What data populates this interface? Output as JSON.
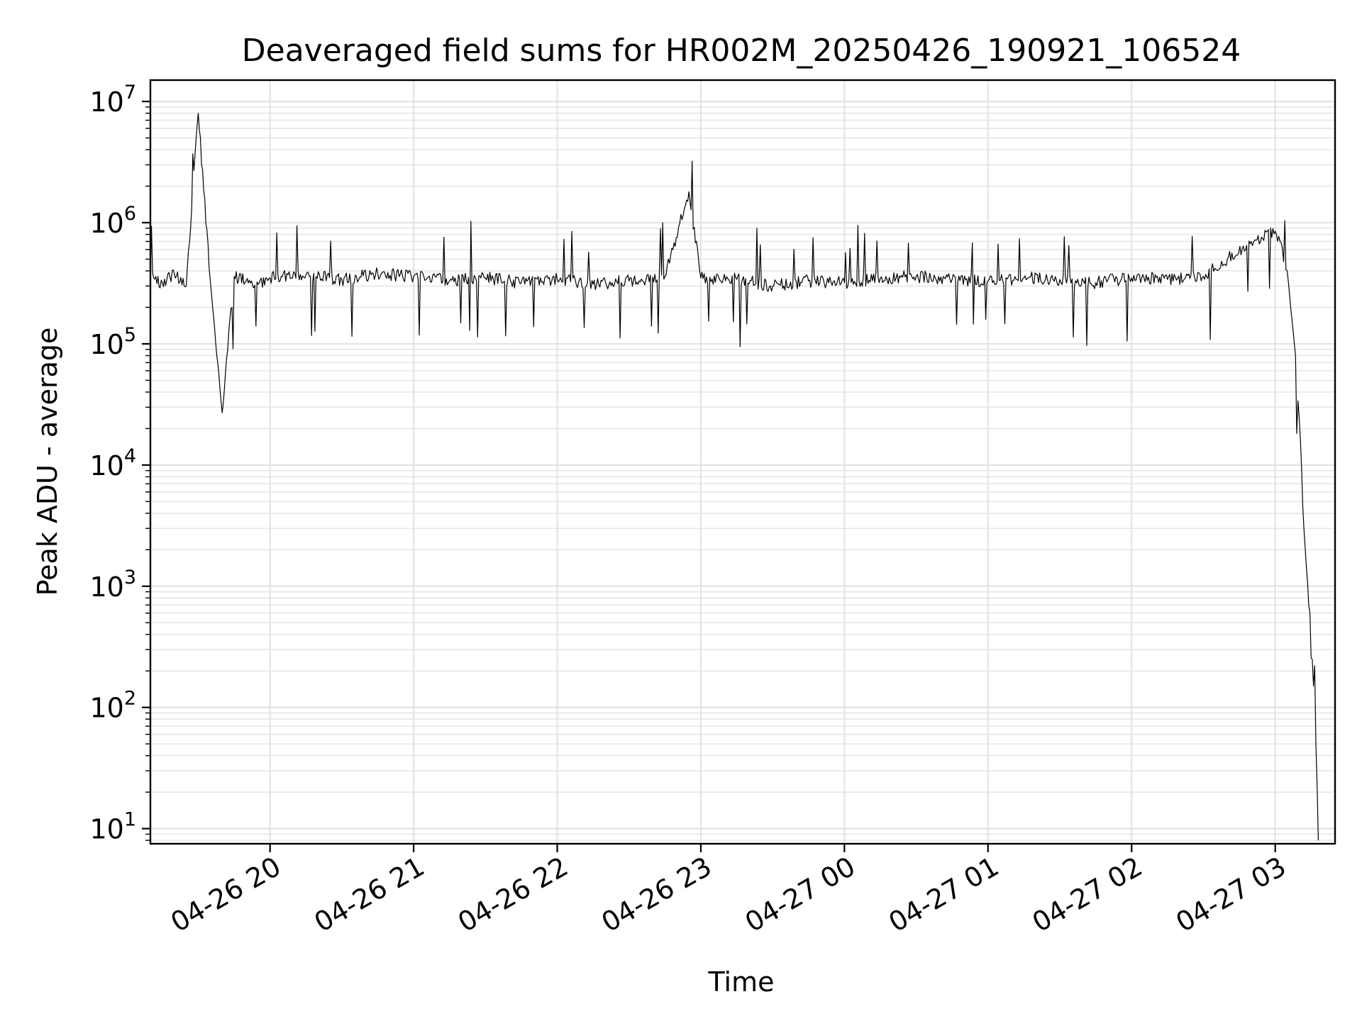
{
  "chart_data": {
    "type": "line",
    "title": "Deaveraged field sums for HR002M_20250426_190921_106524",
    "xlabel": "Time",
    "ylabel": "Peak ADU - average",
    "yscale": "log",
    "grid": true,
    "legend": "none",
    "xlim": [
      "2025-04-26 19:10",
      "2025-04-27 03:25"
    ],
    "ylim": [
      7.5,
      15000000
    ],
    "x_ticks": [
      {
        "t": "2025-04-26 20:00",
        "label": "04-26 20"
      },
      {
        "t": "2025-04-26 21:00",
        "label": "04-26 21"
      },
      {
        "t": "2025-04-26 22:00",
        "label": "04-26 22"
      },
      {
        "t": "2025-04-26 23:00",
        "label": "04-26 23"
      },
      {
        "t": "2025-04-27 00:00",
        "label": "04-27 00"
      },
      {
        "t": "2025-04-27 01:00",
        "label": "04-27 01"
      },
      {
        "t": "2025-04-27 02:00",
        "label": "04-27 02"
      },
      {
        "t": "2025-04-27 03:00",
        "label": "04-27 03"
      }
    ],
    "y_ticks": [
      {
        "v": 10,
        "base": "10",
        "exp": "1"
      },
      {
        "v": 100,
        "base": "10",
        "exp": "2"
      },
      {
        "v": 1000,
        "base": "10",
        "exp": "3"
      },
      {
        "v": 10000,
        "base": "10",
        "exp": "4"
      },
      {
        "v": 100000,
        "base": "10",
        "exp": "5"
      },
      {
        "v": 1000000,
        "base": "10",
        "exp": "6"
      },
      {
        "v": 10000000,
        "base": "10",
        "exp": "7"
      }
    ],
    "series_color": "#000000",
    "series": [
      {
        "x": [
          "2025-04-26 19:10",
          "2025-04-26 19:15",
          "2025-04-26 19:20",
          "2025-04-26 19:25",
          "2025-04-26 19:30",
          "2025-04-26 19:35",
          "2025-04-26 19:40",
          "2025-04-26 19:45",
          "2025-04-26 19:50",
          "2025-04-26 19:55",
          "2025-04-26 20:00",
          "2025-04-26 20:15",
          "2025-04-26 20:30",
          "2025-04-26 20:45",
          "2025-04-26 21:00",
          "2025-04-26 21:15",
          "2025-04-26 21:30",
          "2025-04-26 21:45",
          "2025-04-26 22:00",
          "2025-04-26 22:15",
          "2025-04-26 22:30",
          "2025-04-26 22:45",
          "2025-04-26 22:55",
          "2025-04-26 23:00",
          "2025-04-26 23:15",
          "2025-04-26 23:30",
          "2025-04-26 23:45",
          "2025-04-27 00:00",
          "2025-04-27 00:15",
          "2025-04-27 00:30",
          "2025-04-27 00:45",
          "2025-04-27 01:00",
          "2025-04-27 01:15",
          "2025-04-27 01:30",
          "2025-04-27 01:45",
          "2025-04-27 02:00",
          "2025-04-27 02:15",
          "2025-04-27 02:30",
          "2025-04-27 02:40",
          "2025-04-27 02:50",
          "2025-04-27 03:00",
          "2025-04-27 03:02",
          "2025-04-27 03:05",
          "2025-04-27 03:08",
          "2025-04-27 03:10",
          "2025-04-27 03:12",
          "2025-04-27 03:14",
          "2025-04-27 03:16",
          "2025-04-27 03:17",
          "2025-04-27 03:18"
        ],
        "values": [
          350000,
          320000,
          380000,
          300000,
          8000000,
          340000,
          27000,
          360000,
          330000,
          310000,
          350000,
          370000,
          340000,
          380000,
          360000,
          330000,
          350000,
          320000,
          340000,
          310000,
          330000,
          360000,
          1800000,
          350000,
          340000,
          300000,
          330000,
          320000,
          350000,
          360000,
          340000,
          330000,
          350000,
          340000,
          320000,
          350000,
          340000,
          360000,
          500000,
          700000,
          850000,
          700000,
          400000,
          100000,
          25000,
          3000,
          700,
          150,
          50,
          8
        ]
      }
    ]
  }
}
